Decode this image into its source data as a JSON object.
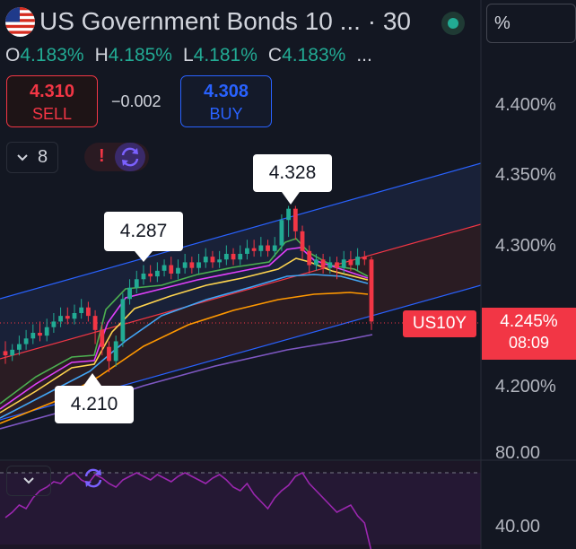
{
  "header": {
    "symbol_title": "US Government Bonds 10 ... · 30",
    "scale_label": "%"
  },
  "ohlc": {
    "o_label": "O",
    "o_value": "4.183%",
    "h_label": "H",
    "h_value": "4.185%",
    "l_label": "L",
    "l_value": "4.181%",
    "c_label": "C",
    "c_value": "4.183%",
    "more": "..."
  },
  "trade": {
    "sell_price": "4.310",
    "sell_label": "SELL",
    "spread": "−0.002",
    "buy_price": "4.308",
    "buy_label": "BUY"
  },
  "indicators": {
    "count": "8",
    "alert_glyph": "!"
  },
  "callouts": {
    "high": "4.328",
    "mid_high": "4.287",
    "low": "4.210"
  },
  "price_axis": {
    "ticks": [
      "4.400%",
      "4.350%",
      "4.300%",
      "4.200%"
    ],
    "symbol_tag": "US10Y",
    "last_price": "4.245%",
    "countdown": "08:09"
  },
  "rsi_axis": {
    "upper": "80.00",
    "lower": "40.00"
  },
  "colors": {
    "background": "#131722",
    "up": "#22ab94",
    "down": "#f23645",
    "accent_blue": "#2962ff",
    "rsi": "#9c27b0"
  },
  "icons": {
    "flag": "us-flag-icon",
    "live": "market-open-icon",
    "chevron": "chevron-down-icon",
    "sync": "sync-icon"
  },
  "chart_data": {
    "type": "candlestick",
    "y_unit": "%",
    "ylim": [
      4.17,
      4.42
    ],
    "y_ticks": [
      4.2,
      4.3,
      4.35,
      4.4
    ],
    "last_price": 4.245,
    "labeled_points": {
      "high": 4.328,
      "mid_high": 4.287,
      "low": 4.21
    },
    "candles": [
      [
        4.225,
        4.222,
        4.232,
        4.216
      ],
      [
        4.222,
        4.226,
        4.23,
        4.218
      ],
      [
        4.226,
        4.23,
        4.236,
        4.222
      ],
      [
        4.23,
        4.234,
        4.24,
        4.226
      ],
      [
        4.234,
        4.238,
        4.244,
        4.23
      ],
      [
        4.238,
        4.236,
        4.246,
        4.232
      ],
      [
        4.236,
        4.242,
        4.248,
        4.232
      ],
      [
        4.242,
        4.246,
        4.252,
        4.238
      ],
      [
        4.246,
        4.25,
        4.256,
        4.242
      ],
      [
        4.25,
        4.248,
        4.256,
        4.244
      ],
      [
        4.248,
        4.252,
        4.258,
        4.244
      ],
      [
        4.252,
        4.256,
        4.262,
        4.248
      ],
      [
        4.256,
        4.25,
        4.26,
        4.246
      ],
      [
        4.25,
        4.24,
        4.254,
        4.23
      ],
      [
        4.24,
        4.228,
        4.244,
        4.222
      ],
      [
        4.228,
        4.218,
        4.232,
        4.21
      ],
      [
        4.218,
        4.232,
        4.236,
        4.214
      ],
      [
        4.232,
        4.262,
        4.266,
        4.228
      ],
      [
        4.262,
        4.27,
        4.276,
        4.258
      ],
      [
        4.27,
        4.276,
        4.282,
        4.266
      ],
      [
        4.276,
        4.28,
        4.286,
        4.272
      ],
      [
        4.28,
        4.278,
        4.286,
        4.274
      ],
      [
        4.278,
        4.282,
        4.288,
        4.274
      ],
      [
        4.282,
        4.286,
        4.29,
        4.278
      ],
      [
        4.286,
        4.28,
        4.292,
        4.276
      ],
      [
        4.28,
        4.284,
        4.29,
        4.276
      ],
      [
        4.284,
        4.288,
        4.294,
        4.28
      ],
      [
        4.288,
        4.284,
        4.292,
        4.28
      ],
      [
        4.284,
        4.288,
        4.294,
        4.28
      ],
      [
        4.288,
        4.292,
        4.298,
        4.284
      ],
      [
        4.292,
        4.288,
        4.296,
        4.284
      ],
      [
        4.288,
        4.29,
        4.296,
        4.284
      ],
      [
        4.29,
        4.294,
        4.3,
        4.286
      ],
      [
        4.294,
        4.29,
        4.298,
        4.286
      ],
      [
        4.29,
        4.294,
        4.3,
        4.286
      ],
      [
        4.294,
        4.298,
        4.304,
        4.29
      ],
      [
        4.298,
        4.296,
        4.304,
        4.292
      ],
      [
        4.296,
        4.3,
        4.306,
        4.292
      ],
      [
        4.3,
        4.296,
        4.304,
        4.292
      ],
      [
        4.296,
        4.3,
        4.306,
        4.292
      ],
      [
        4.3,
        4.318,
        4.322,
        4.296
      ],
      [
        4.318,
        4.326,
        4.328,
        4.306
      ],
      [
        4.326,
        4.31,
        4.328,
        4.304
      ],
      [
        4.31,
        4.296,
        4.314,
        4.29
      ],
      [
        4.296,
        4.286,
        4.3,
        4.28
      ],
      [
        4.286,
        4.29,
        4.294,
        4.282
      ],
      [
        4.29,
        4.284,
        4.294,
        4.28
      ],
      [
        4.284,
        4.288,
        4.292,
        4.28
      ],
      [
        4.288,
        4.284,
        4.292,
        4.276
      ],
      [
        4.284,
        4.29,
        4.296,
        4.28
      ],
      [
        4.29,
        4.286,
        4.296,
        4.282
      ],
      [
        4.286,
        4.292,
        4.298,
        4.282
      ],
      [
        4.292,
        4.29,
        4.296,
        4.286
      ],
      [
        4.29,
        4.246,
        4.292,
        4.24
      ]
    ],
    "candle_fields": [
      "open",
      "close",
      "high",
      "low"
    ],
    "rsi": {
      "ylim": [
        30,
        90
      ],
      "ticks": [
        40,
        80
      ],
      "values": [
        55,
        58,
        62,
        60,
        66,
        70,
        72,
        75,
        74,
        78,
        80,
        76,
        74,
        79,
        77,
        74,
        72,
        76,
        78,
        80,
        78,
        76,
        79,
        77,
        75,
        78,
        80,
        78,
        76,
        74,
        77,
        79,
        76,
        72,
        70,
        74,
        68,
        64,
        60,
        66,
        70,
        73,
        78,
        80,
        74,
        70,
        66,
        62,
        58,
        60,
        62,
        56,
        52,
        36
      ]
    }
  }
}
